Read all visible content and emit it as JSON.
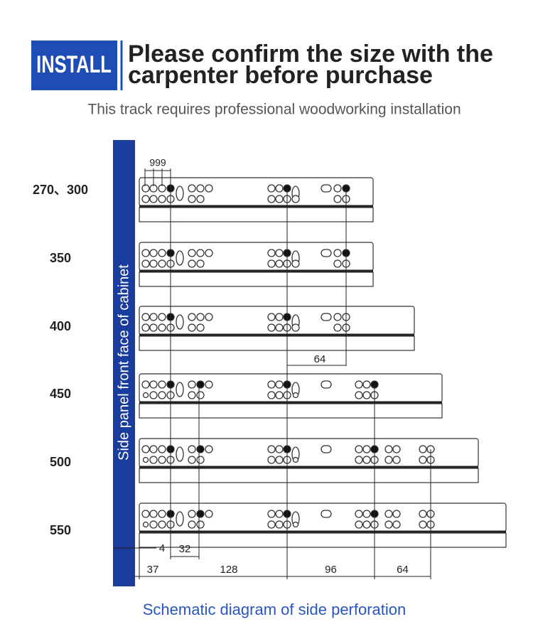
{
  "header": {
    "badge": "INSTALL",
    "title_lines": [
      "Please confirm the size with the",
      "carpenter before purchase"
    ],
    "subtitle": "This track requires professional woodworking installation"
  },
  "side_label": "Side panel front face of cabinet",
  "rows": [
    {
      "label": "270、300"
    },
    {
      "label": "350"
    },
    {
      "label": "400"
    },
    {
      "label": "450"
    },
    {
      "label": "500"
    },
    {
      "label": "550"
    }
  ],
  "dimensions": {
    "top_spacing": "999",
    "middle": "64",
    "offset_small": "4",
    "offset_32": "32",
    "bottom": [
      "37",
      "128",
      "96",
      "64"
    ]
  },
  "caption": "Schematic diagram of side perforation"
}
